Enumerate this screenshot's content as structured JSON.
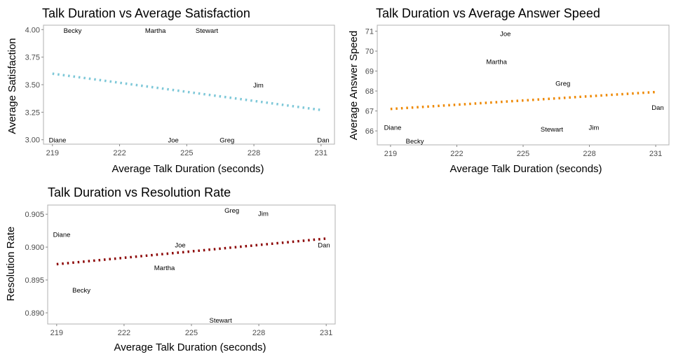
{
  "chart_data": [
    {
      "type": "scatter",
      "title": "Talk Duration vs Average Satisfaction",
      "xlabel": "Average Talk Duration (seconds)",
      "ylabel": "Average Satisfaction",
      "xlim": [
        218.6,
        231.6
      ],
      "ylim": [
        2.96,
        4.04
      ],
      "xticks": [
        219,
        222,
        225,
        228,
        231
      ],
      "yticks": [
        3.0,
        3.25,
        3.5,
        3.75,
        4.0
      ],
      "ytick_labels": [
        "3.00",
        "3.25",
        "3.50",
        "3.75",
        "4.00"
      ],
      "points": [
        {
          "label": "Diane",
          "x": 218.8,
          "y": 3.0
        },
        {
          "label": "Becky",
          "x": 219.9,
          "y": 4.0
        },
        {
          "label": "Martha",
          "x": 223.6,
          "y": 4.0
        },
        {
          "label": "Stewart",
          "x": 225.9,
          "y": 4.0
        },
        {
          "label": "Jim",
          "x": 228.2,
          "y": 3.5
        },
        {
          "label": "Joe",
          "x": 224.4,
          "y": 3.0
        },
        {
          "label": "Greg",
          "x": 226.8,
          "y": 3.0
        },
        {
          "label": "Dan",
          "x": 231.2,
          "y": 3.0
        }
      ],
      "trend": {
        "x": [
          219,
          231
        ],
        "y": [
          3.6,
          3.27
        ],
        "style": "dotted",
        "color": "#7ec8d8"
      },
      "grid": false
    },
    {
      "type": "scatter",
      "title": "Talk Duration vs Average Answer Speed",
      "xlabel": "Average Talk Duration (seconds)",
      "ylabel": "Average Answer Speed",
      "xlim": [
        218.4,
        231.6
      ],
      "ylim": [
        65.3,
        71.3
      ],
      "xticks": [
        219,
        222,
        225,
        228,
        231
      ],
      "yticks": [
        66,
        67,
        68,
        69,
        70,
        71
      ],
      "ytick_labels": [
        "66",
        "67",
        "68",
        "69",
        "70",
        "71"
      ],
      "points": [
        {
          "label": "Joe",
          "x": 224.2,
          "y": 70.9
        },
        {
          "label": "Martha",
          "x": 223.8,
          "y": 69.5
        },
        {
          "label": "Greg",
          "x": 226.8,
          "y": 68.4
        },
        {
          "label": "Dan",
          "x": 231.2,
          "y": 67.2
        },
        {
          "label": "Diane",
          "x": 219.1,
          "y": 66.2
        },
        {
          "label": "Stewart",
          "x": 226.3,
          "y": 66.1
        },
        {
          "label": "Jim",
          "x": 228.2,
          "y": 66.2
        },
        {
          "label": "Becky",
          "x": 220.1,
          "y": 65.4
        }
      ],
      "trend": {
        "x": [
          219,
          231
        ],
        "y": [
          67.1,
          67.95
        ],
        "style": "dotted",
        "color": "#ee8800"
      },
      "grid": false
    },
    {
      "type": "scatter",
      "title": "Talk Duration vs Resolution Rate",
      "xlabel": "Average Talk Duration (seconds)",
      "ylabel": "Resolution Rate",
      "xlim": [
        218.6,
        231.4
      ],
      "ylim": [
        0.8883,
        0.9064
      ],
      "xticks": [
        219,
        222,
        225,
        228,
        231
      ],
      "yticks": [
        0.89,
        0.895,
        0.9,
        0.905
      ],
      "ytick_labels": [
        "0.890",
        "0.895",
        "0.900",
        "0.905"
      ],
      "points": [
        {
          "label": "Greg",
          "x": 226.8,
          "y": 0.9061
        },
        {
          "label": "Jim",
          "x": 228.2,
          "y": 0.9052
        },
        {
          "label": "Diane",
          "x": 218.9,
          "y": 0.902
        },
        {
          "label": "Joe",
          "x": 224.5,
          "y": 0.9004
        },
        {
          "label": "Dan",
          "x": 231.2,
          "y": 0.9004
        },
        {
          "label": "Martha",
          "x": 223.8,
          "y": 0.8969
        },
        {
          "label": "Becky",
          "x": 220.1,
          "y": 0.8935
        },
        {
          "label": "Stewart",
          "x": 226.3,
          "y": 0.8884
        }
      ],
      "trend": {
        "x": [
          219,
          231
        ],
        "y": [
          0.8974,
          0.9013
        ],
        "style": "dotted",
        "color": "#8b0000"
      },
      "grid": false
    }
  ]
}
